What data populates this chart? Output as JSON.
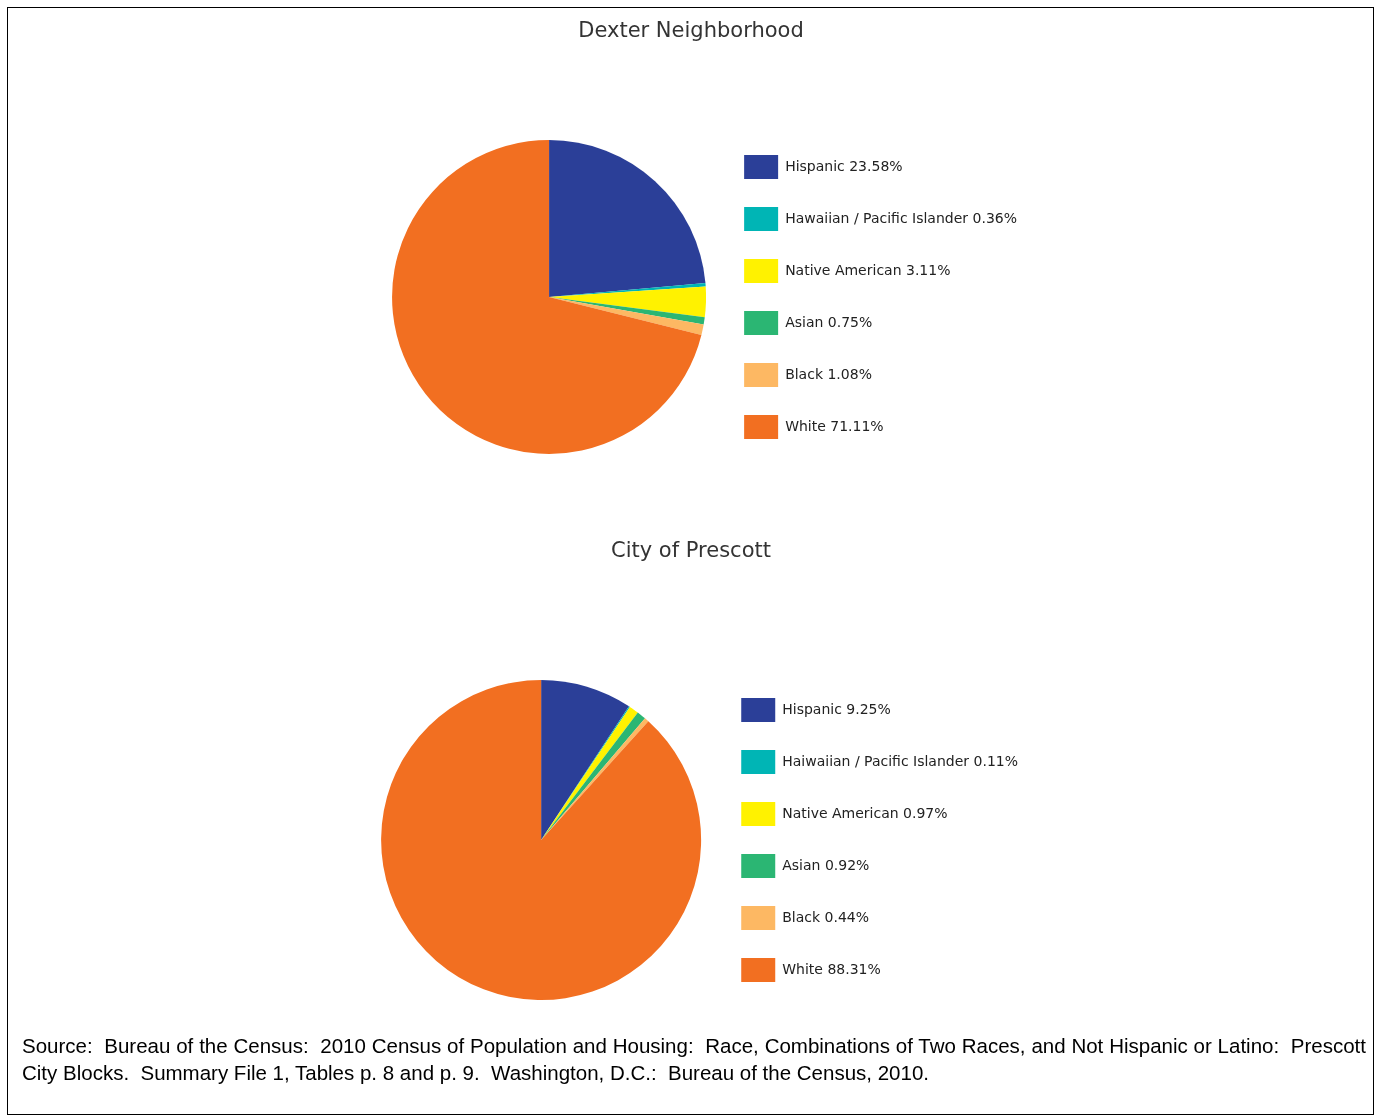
{
  "chart_data": [
    {
      "type": "pie",
      "title": "Dexter Neighborhood",
      "categories": [
        "Hispanic 23.58%",
        "Hawaiian / Pacific Islander 0.36%",
        "Native American 3.11%",
        "Asian 0.75%",
        "Black 1.08%",
        "White 71.11%"
      ],
      "values": [
        23.58,
        0.36,
        3.11,
        0.75,
        1.08,
        71.11
      ],
      "colors": [
        "#2b3f98",
        "#00b5b5",
        "#fff200",
        "#2bb673",
        "#fdb863",
        "#f26f21"
      ],
      "legend": "right"
    },
    {
      "type": "pie",
      "title": "City of Prescott",
      "categories": [
        "Hispanic 9.25%",
        "Haiwaiian / Pacific Islander 0.11%",
        "Native American 0.97%",
        "Asian 0.92%",
        "Black 0.44%",
        "White 88.31%"
      ],
      "values": [
        9.25,
        0.11,
        0.97,
        0.92,
        0.44,
        88.31
      ],
      "colors": [
        "#2b3f98",
        "#00b5b5",
        "#fff200",
        "#2bb673",
        "#fdb863",
        "#f26f21"
      ],
      "legend": "right",
      "annotations": [
        "Source:  Bureau of the Census:  2010 Census of Population and Housing:  Race, Combinations of Two Races, and Not Hispanic or Latino:  Prescott City Blocks.  Summary File 1, Tables p. 8 and p. 9.  Washington, D.C.:  Bureau of the Census, 2010."
      ]
    }
  ]
}
